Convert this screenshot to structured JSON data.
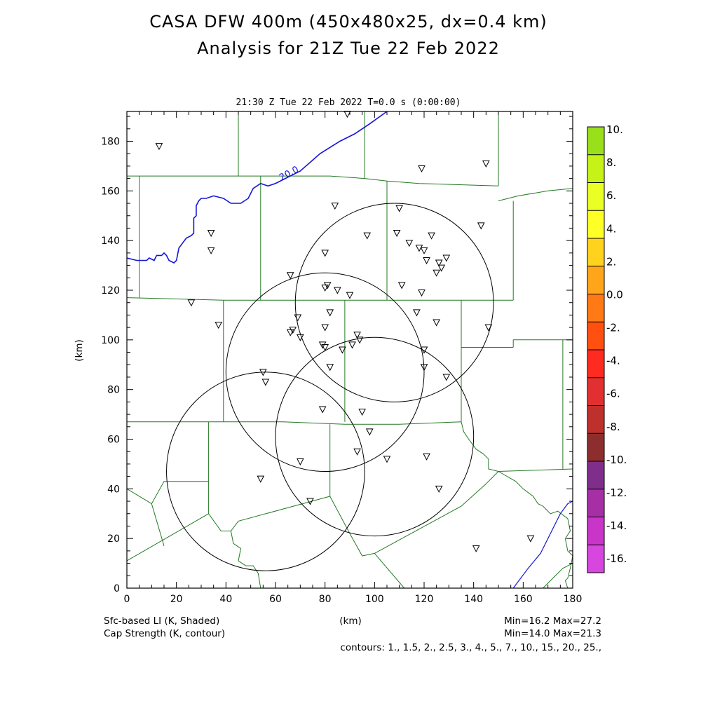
{
  "header": {
    "title_line1": "CASA DFW 400m (450x480x25, dx=0.4 km)",
    "title_line2": "Analysis for 21Z Tue 22 Feb 2022",
    "valid_time": "21:30 Z Tue 22 Feb 2022    T=0.0 s (0:00:00)"
  },
  "footer": {
    "shaded_label": "Sfc-based LI (K, Shaded)",
    "contour_label": "Cap Strength (K, contour)",
    "shaded_minmax": "Min=16.2 Max=27.2",
    "contour_minmax": "Min=14.0 Max=21.3",
    "contours": "contours: 1., 1.5, 2., 2.5, 3., 4., 5., 7., 10., 15., 20., 25.,"
  },
  "chart_data": {
    "type": "map",
    "xlabel": "(km)",
    "ylabel": "(km)",
    "xlim": [
      0,
      180
    ],
    "ylim": [
      0,
      192
    ],
    "x_ticks": [
      "0",
      "20",
      "40",
      "60",
      "80",
      "100",
      "120",
      "140",
      "160",
      "180"
    ],
    "y_ticks": [
      "0",
      "20",
      "40",
      "60",
      "80",
      "100",
      "120",
      "140",
      "160",
      "180"
    ],
    "contour_labels": [
      {
        "text": "20.0",
        "x": 66,
        "y": 166
      }
    ],
    "colorbar": {
      "labels": [
        "10.",
        "8.",
        "6.",
        "4.",
        "2.",
        "0.0",
        "-2.",
        "-4.",
        "-6.",
        "-8.",
        "-10.",
        "-12.",
        "-14.",
        "-16."
      ],
      "colors": [
        "#99e01a",
        "#c6f218",
        "#eaff24",
        "#ffff28",
        "#ffd21e",
        "#ffa51a",
        "#ff7a14",
        "#ff5010",
        "#ff2a20",
        "#e23030",
        "#be302c",
        "#8c2e2e",
        "#7f2e8c",
        "#a62fa5",
        "#c935c8",
        "#d846e0"
      ]
    },
    "radars": [
      {
        "x": 108,
        "y": 115,
        "r": 40
      },
      {
        "x": 80,
        "y": 87,
        "r": 40
      },
      {
        "x": 100,
        "y": 61,
        "r": 40
      },
      {
        "x": 56,
        "y": 47,
        "r": 40
      }
    ],
    "stations": [
      [
        13,
        178
      ],
      [
        89,
        191
      ],
      [
        119,
        169
      ],
      [
        145,
        171
      ],
      [
        84,
        154
      ],
      [
        110,
        153
      ],
      [
        109,
        143
      ],
      [
        97,
        142
      ],
      [
        123,
        142
      ],
      [
        143,
        146
      ],
      [
        34,
        143
      ],
      [
        34,
        136
      ],
      [
        114,
        139
      ],
      [
        118,
        137
      ],
      [
        120,
        136
      ],
      [
        80,
        135
      ],
      [
        129,
        133
      ],
      [
        121,
        132
      ],
      [
        126,
        131
      ],
      [
        127,
        129
      ],
      [
        125,
        127
      ],
      [
        66,
        126
      ],
      [
        81,
        122
      ],
      [
        80,
        121
      ],
      [
        111,
        122
      ],
      [
        85,
        120
      ],
      [
        90,
        118
      ],
      [
        119,
        119
      ],
      [
        26,
        115
      ],
      [
        69,
        109
      ],
      [
        82,
        111
      ],
      [
        117,
        111
      ],
      [
        125,
        107
      ],
      [
        37,
        106
      ],
      [
        67,
        104
      ],
      [
        80,
        105
      ],
      [
        146,
        105
      ],
      [
        66,
        103
      ],
      [
        70,
        101
      ],
      [
        93,
        102
      ],
      [
        94,
        100
      ],
      [
        91,
        98
      ],
      [
        79,
        98
      ],
      [
        80,
        97
      ],
      [
        87,
        96
      ],
      [
        120,
        96
      ],
      [
        82,
        89
      ],
      [
        120,
        89
      ],
      [
        129,
        85
      ],
      [
        55,
        87
      ],
      [
        56,
        83
      ],
      [
        79,
        72
      ],
      [
        95,
        71
      ],
      [
        98,
        63
      ],
      [
        93,
        55
      ],
      [
        121,
        53
      ],
      [
        105,
        52
      ],
      [
        70,
        51
      ],
      [
        54,
        44
      ],
      [
        126,
        40
      ],
      [
        74,
        35
      ],
      [
        141,
        16
      ],
      [
        163,
        20
      ]
    ],
    "cap_contour_20": [
      [
        0,
        133
      ],
      [
        4,
        132
      ],
      [
        8,
        132
      ],
      [
        9,
        133
      ],
      [
        11,
        132
      ],
      [
        12,
        134
      ],
      [
        14,
        134
      ],
      [
        15,
        135
      ],
      [
        16,
        134
      ],
      [
        17,
        132
      ],
      [
        19,
        131
      ],
      [
        20,
        132
      ],
      [
        21,
        137
      ],
      [
        24,
        141
      ],
      [
        26,
        142
      ],
      [
        27,
        143
      ],
      [
        27,
        149
      ],
      [
        28,
        150
      ],
      [
        28,
        154
      ],
      [
        29,
        156
      ],
      [
        30,
        157
      ],
      [
        32,
        157
      ],
      [
        35,
        158
      ],
      [
        39,
        157
      ],
      [
        42,
        155
      ],
      [
        46,
        155
      ],
      [
        49,
        157
      ],
      [
        51,
        161
      ],
      [
        54,
        163
      ],
      [
        57,
        162
      ],
      [
        60,
        163
      ],
      [
        64,
        165
      ],
      [
        70,
        168
      ],
      [
        78,
        175
      ],
      [
        86,
        180
      ],
      [
        92,
        183
      ],
      [
        98,
        187
      ],
      [
        105,
        192
      ]
    ],
    "se_contour": [
      [
        156,
        0
      ],
      [
        162,
        8
      ],
      [
        167,
        14
      ],
      [
        171,
        22
      ],
      [
        175,
        30
      ],
      [
        178,
        34
      ],
      [
        180,
        35
      ]
    ],
    "boundaries": [
      [
        [
          0,
          166
        ],
        [
          10,
          166
        ],
        [
          45,
          166
        ],
        [
          82,
          166
        ],
        [
          96,
          165
        ],
        [
          105,
          164
        ],
        [
          118,
          163
        ],
        [
          150,
          162
        ]
      ],
      [
        [
          5,
          166
        ],
        [
          5,
          117
        ]
      ],
      [
        [
          0,
          117
        ],
        [
          39,
          116
        ],
        [
          80,
          116
        ],
        [
          100,
          116
        ],
        [
          120,
          116
        ],
        [
          156,
          116
        ]
      ],
      [
        [
          45,
          192
        ],
        [
          45,
          166
        ]
      ],
      [
        [
          54,
          166
        ],
        [
          54,
          116
        ]
      ],
      [
        [
          96,
          192
        ],
        [
          96,
          165
        ]
      ],
      [
        [
          150,
          192
        ],
        [
          150,
          162
        ]
      ],
      [
        [
          105,
          164
        ],
        [
          105,
          116
        ]
      ],
      [
        [
          150,
          156
        ],
        [
          158,
          158
        ],
        [
          170,
          160
        ],
        [
          180,
          161
        ]
      ],
      [
        [
          156,
          156
        ],
        [
          156,
          116
        ]
      ],
      [
        [
          39,
          116
        ],
        [
          39,
          67
        ]
      ],
      [
        [
          88,
          116
        ],
        [
          88,
          67
        ]
      ],
      [
        [
          135,
          116
        ],
        [
          135,
          67
        ]
      ],
      [
        [
          135,
          97
        ],
        [
          156,
          97
        ]
      ],
      [
        [
          156,
          97
        ],
        [
          156,
          100
        ],
        [
          180,
          100
        ]
      ],
      [
        [
          176,
          100
        ],
        [
          176,
          48
        ]
      ],
      [
        [
          0,
          67
        ],
        [
          33,
          67
        ],
        [
          63,
          67
        ],
        [
          88,
          66
        ],
        [
          110,
          66
        ],
        [
          135,
          67
        ]
      ],
      [
        [
          33,
          67
        ],
        [
          33,
          30
        ]
      ],
      [
        [
          82,
          66
        ],
        [
          82,
          37
        ]
      ],
      [
        [
          0,
          40
        ],
        [
          10,
          34
        ],
        [
          15,
          43
        ],
        [
          33,
          43
        ]
      ],
      [
        [
          10,
          34
        ],
        [
          15,
          17
        ]
      ],
      [
        [
          0,
          11
        ],
        [
          33,
          30
        ],
        [
          38,
          23
        ],
        [
          42,
          23
        ],
        [
          45,
          27
        ],
        [
          82,
          37
        ]
      ],
      [
        [
          82,
          37
        ],
        [
          90,
          22
        ],
        [
          95,
          13
        ],
        [
          100,
          14
        ]
      ],
      [
        [
          100,
          14
        ],
        [
          135,
          33
        ],
        [
          145,
          42
        ],
        [
          150,
          47
        ]
      ],
      [
        [
          135,
          67
        ],
        [
          136,
          63
        ],
        [
          138,
          60
        ],
        [
          141,
          56
        ],
        [
          144,
          54
        ],
        [
          146,
          52
        ],
        [
          146,
          48
        ],
        [
          150,
          47
        ],
        [
          180,
          48
        ]
      ],
      [
        [
          150,
          47
        ],
        [
          157,
          43
        ],
        [
          160,
          40
        ],
        [
          164,
          37
        ],
        [
          166,
          34
        ],
        [
          168,
          33
        ],
        [
          171,
          30
        ],
        [
          174,
          31
        ],
        [
          178,
          28
        ],
        [
          179,
          23
        ],
        [
          177,
          20
        ],
        [
          178,
          15
        ],
        [
          180,
          13
        ],
        [
          179,
          8
        ],
        [
          178,
          4
        ],
        [
          177,
          3
        ],
        [
          178,
          0
        ]
      ],
      [
        [
          42,
          23
        ],
        [
          43,
          18
        ],
        [
          46,
          16
        ],
        [
          45,
          11
        ],
        [
          48,
          9
        ],
        [
          51,
          9
        ],
        [
          53,
          6
        ],
        [
          54,
          0
        ]
      ],
      [
        [
          100,
          14
        ],
        [
          112,
          0
        ]
      ],
      [
        [
          168,
          0
        ],
        [
          176,
          8
        ],
        [
          180,
          10
        ]
      ]
    ]
  }
}
